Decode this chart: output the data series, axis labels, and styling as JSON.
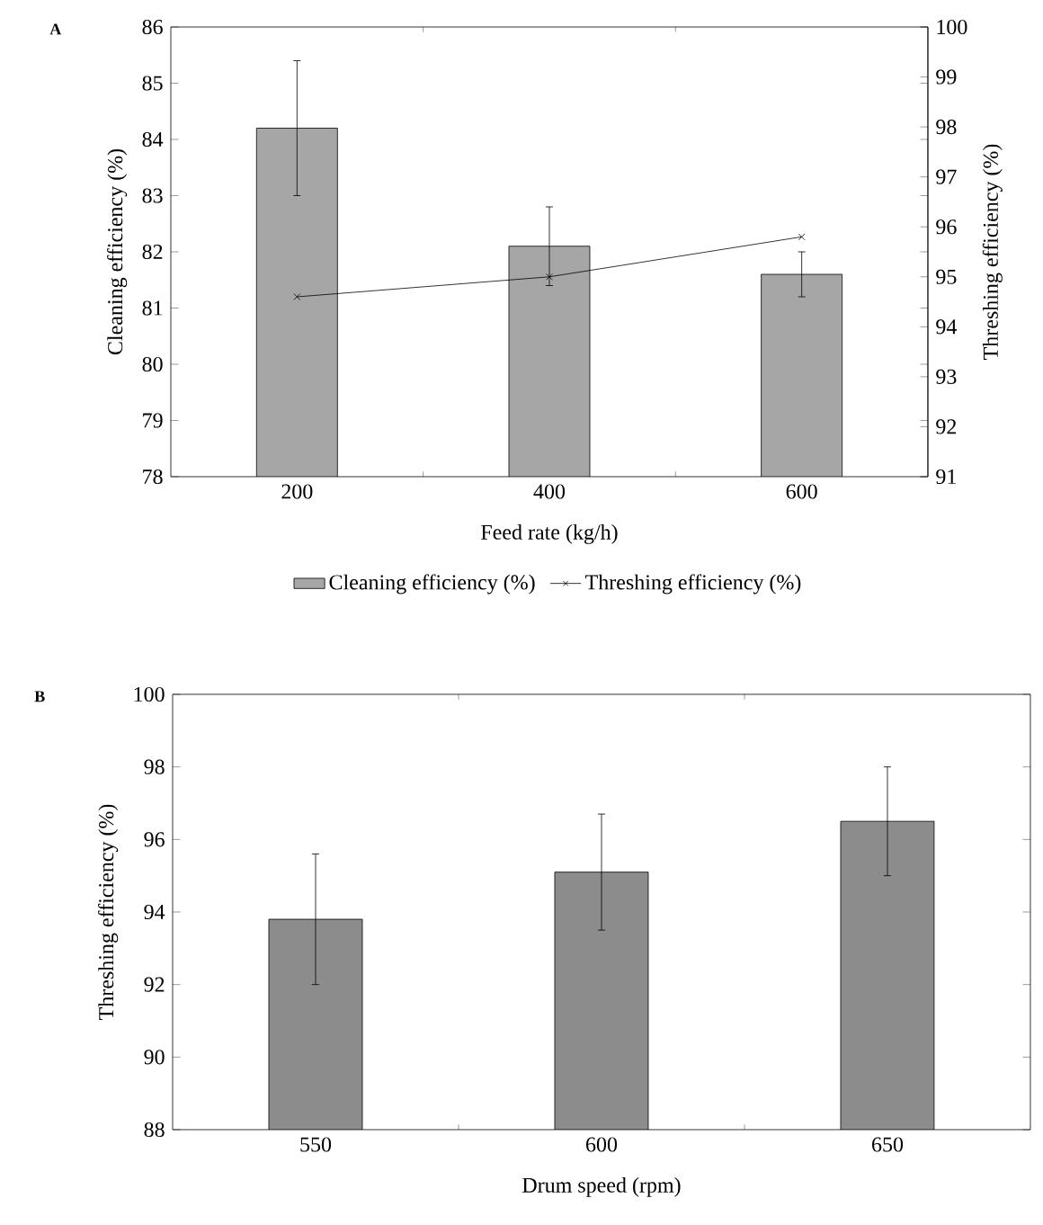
{
  "chart_data": [
    {
      "type": "bar",
      "title": "A",
      "categories": [
        "200",
        "400",
        "600"
      ],
      "xlabel": "Feed rate (kg/h)",
      "ylabel": "Cleaning efficiency (%)",
      "y2label": "Threshing efficiency (%)",
      "ylim": [
        78,
        86
      ],
      "yticks": [
        78,
        79,
        80,
        81,
        82,
        83,
        84,
        85,
        86
      ],
      "y2lim": [
        91,
        100
      ],
      "y2ticks": [
        91,
        92,
        93,
        94,
        95,
        96,
        97,
        98,
        99,
        100
      ],
      "legend": "bottom",
      "series": [
        {
          "name": "Cleaning efficiency (%)",
          "type": "bar",
          "color": "#a6a6a6",
          "values": [
            84.2,
            82.1,
            81.6
          ],
          "errors": [
            1.2,
            0.7,
            0.4
          ]
        },
        {
          "name": "Threshing efficiency (%)",
          "type": "line",
          "axis": "y2",
          "color": "#000000",
          "marker": "cross",
          "values": [
            94.6,
            95.0,
            95.8
          ]
        }
      ]
    },
    {
      "type": "bar",
      "title": "B",
      "categories": [
        "550",
        "600",
        "650"
      ],
      "xlabel": "Drum speed (rpm)",
      "ylabel": "Threshing efficiency (%)",
      "ylim": [
        88,
        100
      ],
      "yticks": [
        88,
        90,
        92,
        94,
        96,
        98,
        100
      ],
      "color": "#8c8c8c",
      "values": [
        93.8,
        95.1,
        96.5
      ],
      "errors": [
        1.8,
        1.6,
        1.5
      ]
    }
  ]
}
